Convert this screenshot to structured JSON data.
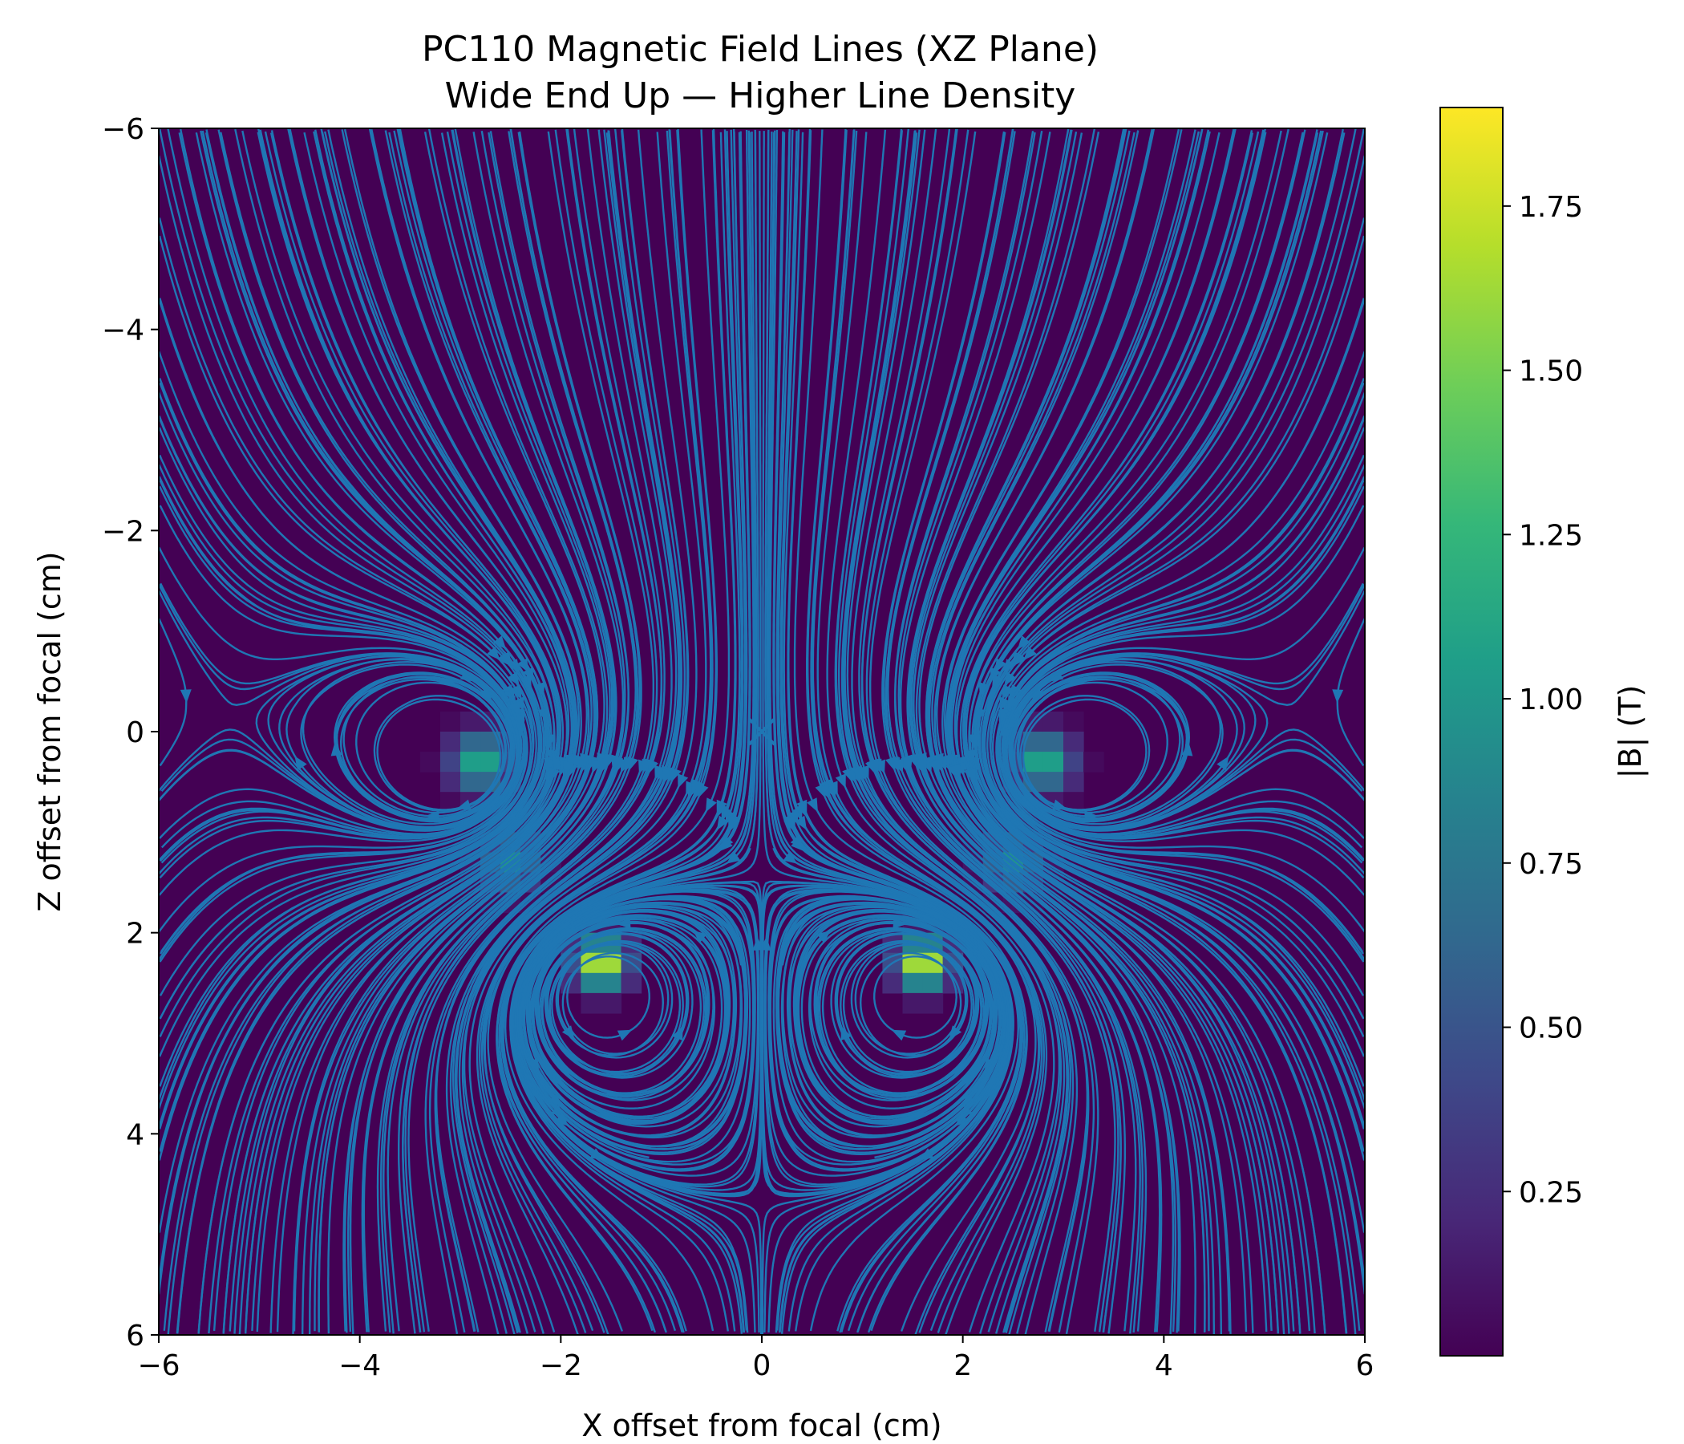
{
  "chart_data": {
    "type": "heatmap",
    "overlay": "streamplot",
    "title": "PC110 Magnetic Field Lines (XZ Plane)",
    "subtitle": "Wide End Up — Higher Line Density",
    "xlabel": "X offset from focal (cm)",
    "ylabel": "Z offset from focal (cm)",
    "xlim": [
      -6,
      6
    ],
    "ylim": [
      6,
      -6
    ],
    "y_inverted": true,
    "xticks": [
      -6,
      -4,
      -2,
      0,
      2,
      4,
      6
    ],
    "yticks": [
      -6,
      -4,
      -2,
      0,
      2,
      4,
      6
    ],
    "colorbar": {
      "label": "|B| (T)",
      "range": [
        0,
        1.9
      ],
      "ticks": [
        0.25,
        0.5,
        0.75,
        1.0,
        1.25,
        1.5,
        1.75
      ],
      "colormap": "viridis"
    },
    "stream_color": "#1f77b4",
    "focal_marker": {
      "x": 0,
      "z": 0,
      "symbol": "x"
    },
    "magnets": [
      {
        "x": -2.8,
        "z": 0.3,
        "peak_B": 1.2,
        "spread": 0.28
      },
      {
        "x": 2.8,
        "z": 0.3,
        "peak_B": 1.2,
        "spread": 0.28
      },
      {
        "x": -2.5,
        "z": 1.3,
        "peak_B": 1.0,
        "spread": 0.26
      },
      {
        "x": 2.5,
        "z": 1.3,
        "peak_B": 1.0,
        "spread": 0.26
      },
      {
        "x": -1.6,
        "z": 2.3,
        "peak_B": 1.9,
        "spread": 0.25
      },
      {
        "x": 1.6,
        "z": 2.3,
        "peak_B": 1.9,
        "spread": 0.25
      }
    ],
    "field_vortices": [
      {
        "x": -3.0,
        "z": 0.3,
        "circulation": 1
      },
      {
        "x": 3.0,
        "z": 0.3,
        "circulation": -1
      },
      {
        "x": -1.6,
        "z": 2.6,
        "circulation": -1
      },
      {
        "x": 1.6,
        "z": 2.6,
        "circulation": 1
      }
    ]
  },
  "colors": {
    "viridis": [
      "#440154",
      "#482878",
      "#3e4989",
      "#31688e",
      "#26828e",
      "#1f9e89",
      "#35b779",
      "#6ece58",
      "#b5de2b",
      "#fde725"
    ]
  }
}
